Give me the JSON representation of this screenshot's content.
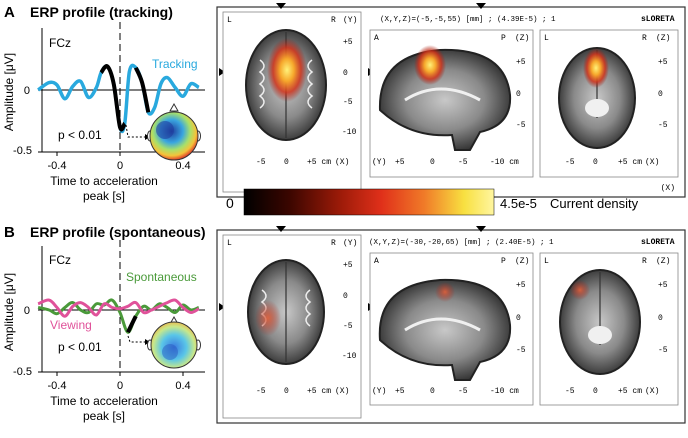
{
  "panel_a": {
    "letter": "A",
    "title": "ERP profile (tracking)",
    "channel": "FCz",
    "series_label": "Tracking",
    "p_label": "p < 0.01",
    "ylabel": "Amplitude [μV]",
    "xlabel_1": "Time to acceleration",
    "xlabel_2": "peak [s]",
    "y_ticks": [
      "0",
      "-0.5"
    ],
    "x_ticks": [
      "-0.4",
      "0",
      "0.4"
    ],
    "loreta_title": "sLORETA",
    "coords": "(X,Y,Z)=(-5,-5,55) [mm] ; (4.39E-5) ; 1",
    "axial": {
      "left": "L",
      "right": "R",
      "axis_right": "(Y)",
      "axis_bottom": "(X)",
      "ticks_right": [
        "+5",
        "0",
        "-5",
        "-10"
      ],
      "ticks_bottom": [
        "-5",
        "0",
        "+5 cm"
      ]
    },
    "sagittal": {
      "left": "A",
      "right": "P",
      "axis_right": "(Z)",
      "axis_bottom": "(Y)",
      "ticks_right": [
        "+5",
        "0",
        "-5"
      ],
      "ticks_bottom": [
        "+5",
        "0",
        "-5",
        "-10 cm"
      ]
    },
    "coronal": {
      "left": "L",
      "right": "R",
      "axis_right": "(Z)",
      "axis_bottom": "(X)",
      "ticks_right": [
        "+5",
        "0",
        "-5"
      ],
      "ticks_bottom": [
        "-5",
        "0",
        "+5 cm"
      ]
    }
  },
  "panel_b": {
    "letter": "B",
    "title": "ERP profile (spontaneous)",
    "channel": "FCz",
    "series_label_1": "Spontaneous",
    "series_label_2": "Viewing",
    "p_label": "p < 0.01",
    "ylabel": "Amplitude [μV]",
    "xlabel_1": "Time to acceleration",
    "xlabel_2": "peak [s]",
    "y_ticks": [
      "0",
      "-0.5"
    ],
    "x_ticks": [
      "-0.4",
      "0",
      "0.4"
    ],
    "loreta_title": "sLORETA",
    "coords": "(X,Y,Z)=(-30,-20,65) [mm] ; (2.40E-5) ; 1",
    "axial": {
      "left": "L",
      "right": "R",
      "axis_right": "(Y)",
      "axis_bottom": "(X)",
      "ticks_right": [
        "+5",
        "0",
        "-5",
        "-10"
      ],
      "ticks_bottom": [
        "-5",
        "0",
        "+5 cm"
      ]
    },
    "sagittal": {
      "left": "A",
      "right": "P",
      "axis_right": "(Z)",
      "axis_bottom": "(Y)",
      "ticks_right": [
        "+5",
        "0",
        "-5"
      ],
      "ticks_bottom": [
        "+5",
        "0",
        "-5",
        "-10 cm"
      ]
    },
    "coronal": {
      "left": "L",
      "right": "R",
      "axis_right": "(Z)",
      "axis_bottom": "(X)",
      "ticks_right": [
        "+5",
        "0",
        "-5"
      ],
      "ticks_bottom": [
        "-5",
        "0",
        "+5 cm"
      ]
    }
  },
  "colorbar": {
    "min": "0",
    "max": "4.5e-5",
    "label": "Current density",
    "stops": [
      "#000000",
      "#5a0a00",
      "#b01c0a",
      "#e8361c",
      "#f4802a",
      "#f8e640",
      "#fff8a0"
    ]
  },
  "chart_data": [
    {
      "type": "line",
      "x": [
        -0.52,
        -0.45,
        -0.4,
        -0.35,
        -0.3,
        -0.25,
        -0.2,
        -0.15,
        -0.12,
        -0.08,
        -0.04,
        0.0,
        0.03,
        0.06,
        0.1,
        0.14,
        0.18,
        0.22,
        0.26,
        0.3,
        0.35,
        0.4,
        0.45,
        0.5
      ],
      "series": [
        {
          "name": "Tracking",
          "color": "#29a9de",
          "values": [
            0.0,
            0.06,
            0.04,
            -0.07,
            0.03,
            0.07,
            -0.06,
            0.02,
            0.14,
            0.19,
            0.05,
            -0.3,
            -0.27,
            0.15,
            0.18,
            0.06,
            -0.18,
            -0.14,
            0.05,
            0.1,
            0.02,
            -0.05,
            0.05,
            0.02
          ]
        }
      ],
      "highlight_segments": [
        [
          -0.12,
          0.03
        ],
        [
          0.1,
          0.18
        ]
      ],
      "ylim": [
        -0.5,
        0.3
      ],
      "xlim": [
        -0.52,
        0.5
      ]
    },
    {
      "type": "line",
      "x": [
        -0.52,
        -0.45,
        -0.4,
        -0.35,
        -0.3,
        -0.25,
        -0.2,
        -0.15,
        -0.1,
        -0.05,
        0.0,
        0.05,
        0.1,
        0.15,
        0.2,
        0.25,
        0.3,
        0.35,
        0.4,
        0.45,
        0.5
      ],
      "series": [
        {
          "name": "Spontaneous",
          "color": "#4a9a3a",
          "values": [
            0.02,
            0.0,
            -0.03,
            0.02,
            0.06,
            0.0,
            -0.02,
            0.05,
            0.04,
            0.08,
            -0.02,
            -0.18,
            -0.05,
            0.03,
            0.0,
            0.05,
            0.02,
            -0.02,
            0.04,
            0.0,
            0.02
          ]
        },
        {
          "name": "Viewing",
          "color": "#e0529a",
          "values": [
            0.05,
            0.08,
            0.02,
            -0.05,
            0.03,
            0.06,
            0.02,
            -0.04,
            0.05,
            0.02,
            0.01,
            0.03,
            0.06,
            -0.02,
            0.0,
            0.03,
            0.06,
            0.08,
            0.02,
            -0.02,
            0.01
          ]
        }
      ],
      "highlight_segments": [
        [
          0.02,
          0.1
        ]
      ],
      "ylim": [
        -0.5,
        0.3
      ],
      "xlim": [
        -0.52,
        0.5
      ]
    }
  ]
}
